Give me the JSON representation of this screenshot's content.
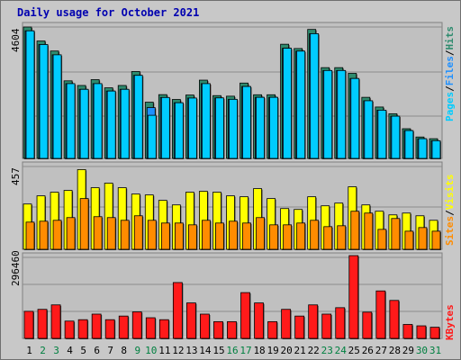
{
  "chart_data": [
    {
      "type": "bar",
      "title": "Daily usage for October 2021",
      "categories": [
        "1",
        "2",
        "3",
        "4",
        "5",
        "6",
        "7",
        "8",
        "9",
        "10",
        "11",
        "12",
        "13",
        "14",
        "15",
        "16",
        "17",
        "18",
        "19",
        "20",
        "21",
        "22",
        "23",
        "24",
        "25",
        "26",
        "27",
        "28",
        "29",
        "30",
        "31"
      ],
      "weekend_days": [
        "2",
        "3",
        "9",
        "10",
        "16",
        "17",
        "23",
        "24",
        "30",
        "31"
      ],
      "y_tick_label": "4604",
      "ylim": [
        0,
        4604
      ],
      "series": [
        {
          "name": "Hits",
          "color": "#2e8b6e",
          "values": [
            4604,
            4114,
            3763,
            2718,
            2555,
            2760,
            2473,
            2555,
            3044,
            1970,
            2234,
            2065,
            2220,
            2742,
            2200,
            2180,
            2640,
            2230,
            2230,
            4000,
            3850,
            4520,
            3180,
            3180,
            2980,
            2140,
            1800,
            1565,
            1040,
            750,
            690
          ]
        },
        {
          "name": "Files",
          "color": "#1e90ff",
          "values": [
            4470,
            3990,
            3630,
            2620,
            2420,
            2620,
            2360,
            2420,
            2910,
            1780,
            2134,
            1950,
            2115,
            2620,
            2120,
            2070,
            2520,
            2140,
            2140,
            3860,
            3760,
            4370,
            3080,
            3080,
            2800,
            2020,
            1690,
            1480,
            975,
            690,
            620
          ]
        },
        {
          "name": "Pages",
          "color": "#00ccff",
          "values": [
            4470,
            3990,
            3630,
            2620,
            2420,
            2620,
            2360,
            2420,
            2910,
            1510,
            2134,
            1950,
            2115,
            2620,
            2120,
            2070,
            2520,
            2140,
            2140,
            3860,
            3760,
            4370,
            3080,
            3080,
            2800,
            2020,
            1690,
            1480,
            975,
            690,
            620
          ]
        }
      ]
    },
    {
      "type": "bar",
      "categories": [
        "1",
        "2",
        "3",
        "4",
        "5",
        "6",
        "7",
        "8",
        "9",
        "10",
        "11",
        "12",
        "13",
        "14",
        "15",
        "16",
        "17",
        "18",
        "19",
        "20",
        "21",
        "22",
        "23",
        "24",
        "25",
        "26",
        "27",
        "28",
        "29",
        "30",
        "31"
      ],
      "y_tick_label": "457",
      "ylim": [
        0,
        457
      ],
      "series": [
        {
          "name": "Visits",
          "color": "#ffff00",
          "values": [
            250,
            295,
            315,
            325,
            440,
            340,
            365,
            340,
            305,
            300,
            270,
            245,
            315,
            320,
            315,
            295,
            290,
            335,
            280,
            225,
            220,
            290,
            240,
            255,
            345,
            245,
            210,
            190,
            200,
            185,
            160
          ]
        },
        {
          "name": "Sites",
          "color": "#ff8c00",
          "values": [
            150,
            155,
            160,
            175,
            280,
            180,
            175,
            160,
            185,
            160,
            145,
            145,
            135,
            160,
            145,
            155,
            145,
            175,
            135,
            135,
            145,
            160,
            125,
            130,
            210,
            200,
            110,
            170,
            100,
            120,
            100
          ]
        }
      ]
    },
    {
      "type": "bar",
      "categories": [
        "1",
        "2",
        "3",
        "4",
        "5",
        "6",
        "7",
        "8",
        "9",
        "10",
        "11",
        "12",
        "13",
        "14",
        "15",
        "16",
        "17",
        "18",
        "19",
        "20",
        "21",
        "22",
        "23",
        "24",
        "25",
        "26",
        "27",
        "28",
        "29",
        "30",
        "31"
      ],
      "y_tick_label": "296460",
      "ylim": [
        0,
        296460
      ],
      "series": [
        {
          "name": "KBytes",
          "color": "#ff1a1a",
          "values": [
            97000,
            104000,
            120000,
            62000,
            67000,
            87000,
            67000,
            80000,
            95000,
            74000,
            67000,
            200000,
            127000,
            87000,
            60000,
            60000,
            164000,
            127000,
            60000,
            104000,
            80000,
            120000,
            87000,
            110000,
            296460,
            94000,
            170000,
            136000,
            50000,
            45000,
            40000
          ]
        }
      ]
    }
  ],
  "legend": {
    "top": {
      "pages": "Pages",
      "files": "Files",
      "hits": "Hits",
      "sep": "/",
      "pages_color": "#00ccff",
      "files_color": "#1e90ff",
      "hits_color": "#2e8b6e"
    },
    "mid": {
      "sites": "Sites",
      "visits": "Visits",
      "sep": "/",
      "sites_color": "#ff8c00",
      "visits_color": "#ffff00"
    },
    "bot": {
      "kbytes": "KBytes",
      "kbytes_color": "#ff1a1a"
    }
  },
  "colors": {
    "weekday_label": "#000000",
    "weekend_label": "#008040",
    "title": "#0000b0"
  }
}
